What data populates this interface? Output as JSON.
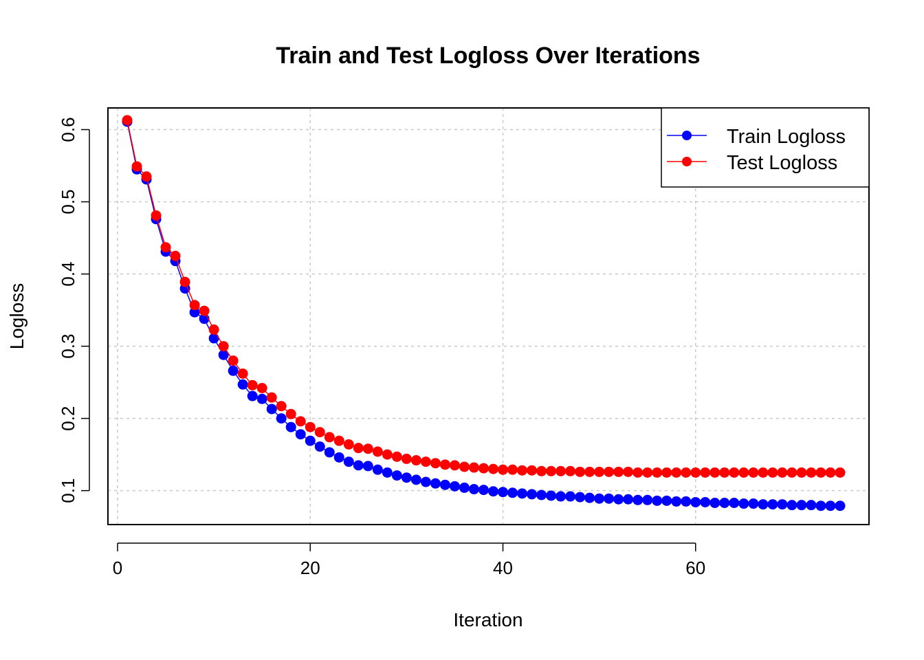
{
  "chart_data": {
    "type": "line",
    "title": "Train and Test Logloss Over Iterations",
    "xlabel": "Iteration",
    "ylabel": "Logloss",
    "xlim": [
      -1,
      78
    ],
    "ylim": [
      0.053,
      0.63
    ],
    "xticks": [
      0,
      20,
      40,
      60
    ],
    "yticks": [
      0.1,
      0.2,
      0.3,
      0.4,
      0.5,
      0.6
    ],
    "xtick_labels": [
      "0",
      "20",
      "40",
      "60"
    ],
    "ytick_labels": [
      "0.1",
      "0.2",
      "0.3",
      "0.4",
      "0.5",
      "0.6"
    ],
    "grid": true,
    "legend_position": "top-right",
    "x": [
      1,
      2,
      3,
      4,
      5,
      6,
      7,
      8,
      9,
      10,
      11,
      12,
      13,
      14,
      15,
      16,
      17,
      18,
      19,
      20,
      21,
      22,
      23,
      24,
      25,
      26,
      27,
      28,
      29,
      30,
      31,
      32,
      33,
      34,
      35,
      36,
      37,
      38,
      39,
      40,
      41,
      42,
      43,
      44,
      45,
      46,
      47,
      48,
      49,
      50,
      51,
      52,
      53,
      54,
      55,
      56,
      57,
      58,
      59,
      60,
      61,
      62,
      63,
      64,
      65,
      66,
      67,
      68,
      69,
      70,
      71,
      72,
      73,
      74,
      75
    ],
    "series": [
      {
        "name": "Train Logloss",
        "color": "#0000FF",
        "values": [
          0.611,
          0.545,
          0.531,
          0.476,
          0.431,
          0.418,
          0.38,
          0.347,
          0.338,
          0.311,
          0.288,
          0.266,
          0.247,
          0.231,
          0.227,
          0.213,
          0.2,
          0.188,
          0.178,
          0.169,
          0.161,
          0.153,
          0.146,
          0.14,
          0.135,
          0.134,
          0.129,
          0.125,
          0.121,
          0.118,
          0.115,
          0.112,
          0.11,
          0.108,
          0.106,
          0.104,
          0.102,
          0.101,
          0.099,
          0.098,
          0.097,
          0.096,
          0.095,
          0.094,
          0.093,
          0.092,
          0.092,
          0.091,
          0.09,
          0.089,
          0.089,
          0.088,
          0.088,
          0.087,
          0.087,
          0.086,
          0.086,
          0.085,
          0.085,
          0.084,
          0.084,
          0.083,
          0.083,
          0.083,
          0.082,
          0.082,
          0.081,
          0.081,
          0.081,
          0.08,
          0.08,
          0.08,
          0.079,
          0.079,
          0.079
        ]
      },
      {
        "name": "Test Logloss",
        "color": "#FF0000",
        "values": [
          0.613,
          0.549,
          0.535,
          0.481,
          0.437,
          0.425,
          0.389,
          0.357,
          0.349,
          0.323,
          0.3,
          0.28,
          0.262,
          0.246,
          0.242,
          0.229,
          0.217,
          0.206,
          0.196,
          0.188,
          0.181,
          0.174,
          0.169,
          0.164,
          0.159,
          0.158,
          0.154,
          0.15,
          0.147,
          0.144,
          0.142,
          0.14,
          0.138,
          0.136,
          0.135,
          0.133,
          0.132,
          0.131,
          0.13,
          0.129,
          0.129,
          0.128,
          0.128,
          0.127,
          0.127,
          0.127,
          0.127,
          0.126,
          0.126,
          0.126,
          0.126,
          0.126,
          0.126,
          0.125,
          0.125,
          0.125,
          0.125,
          0.125,
          0.125,
          0.125,
          0.125,
          0.125,
          0.125,
          0.125,
          0.125,
          0.125,
          0.125,
          0.125,
          0.125,
          0.125,
          0.125,
          0.125,
          0.125,
          0.125,
          0.125
        ]
      }
    ]
  }
}
